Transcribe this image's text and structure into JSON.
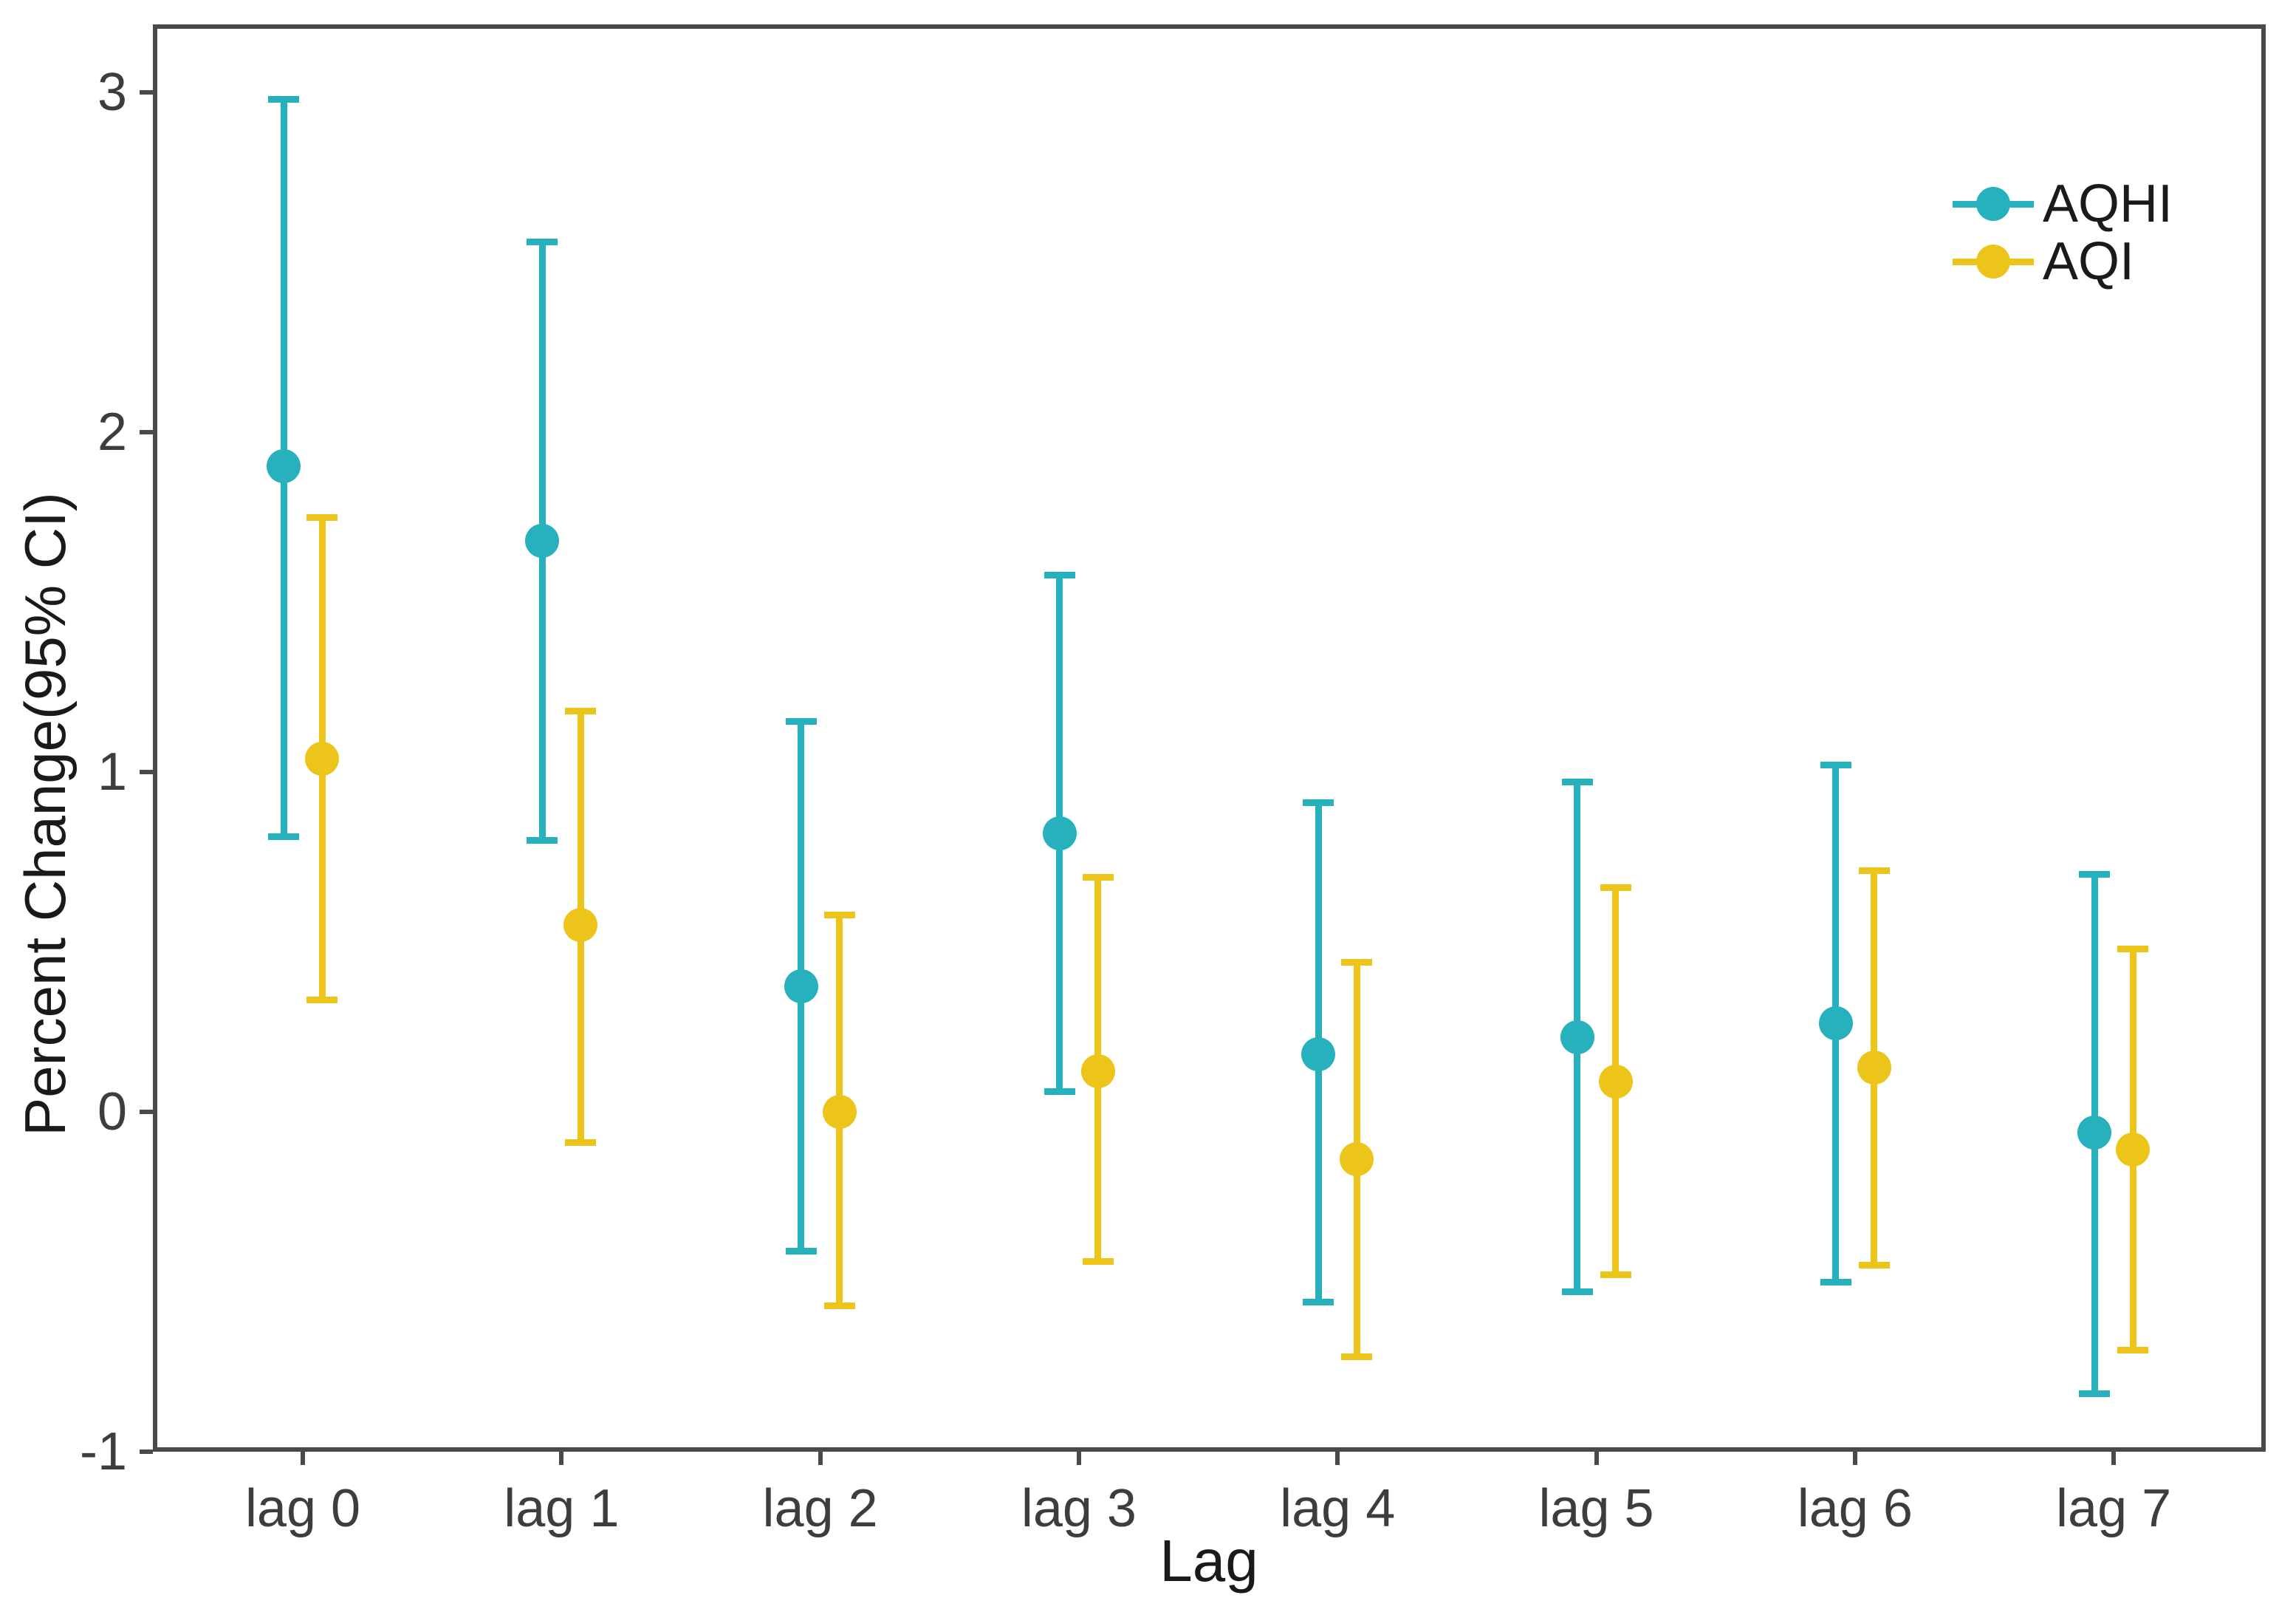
{
  "chart_data": {
    "type": "scatter",
    "title": "",
    "xlabel": "Lag",
    "ylabel": "Percent Change(95% CI)",
    "categories": [
      "lag 0",
      "lag 1",
      "lag 2",
      "lag 3",
      "lag 4",
      "lag 5",
      "lag 6",
      "lag 7"
    ],
    "y_axis": {
      "tick_labels": [
        "3",
        "2",
        "1",
        "0",
        "-1"
      ],
      "tick_values": [
        3,
        2,
        1,
        0,
        -1
      ],
      "range_top": 3.2,
      "range_bottom": -1.0
    },
    "grid": false,
    "legend_position": "top-right-inside",
    "series": [
      {
        "name": "AQHI",
        "color": "#26b1bd",
        "values": [
          1.9,
          1.68,
          0.37,
          0.82,
          0.17,
          0.22,
          0.26,
          -0.06
        ],
        "ci_low": [
          0.81,
          0.8,
          -0.41,
          0.06,
          -0.56,
          -0.53,
          -0.5,
          -0.83
        ],
        "ci_high": [
          2.98,
          2.56,
          1.15,
          1.58,
          0.91,
          0.97,
          1.02,
          0.7
        ]
      },
      {
        "name": "AQI",
        "color": "#ecc41a",
        "values": [
          1.04,
          0.55,
          0.0,
          0.12,
          -0.14,
          0.09,
          0.13,
          -0.11
        ],
        "ci_low": [
          0.33,
          -0.09,
          -0.57,
          -0.44,
          -0.72,
          -0.48,
          -0.45,
          -0.7
        ],
        "ci_high": [
          1.75,
          1.18,
          0.58,
          0.69,
          0.44,
          0.66,
          0.71,
          0.48
        ]
      }
    ]
  }
}
